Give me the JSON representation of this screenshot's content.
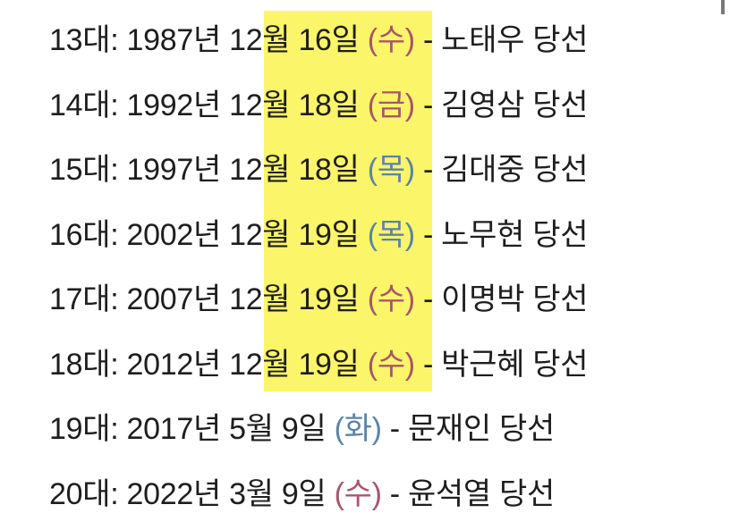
{
  "colors": {
    "highlight": "#fbf56a",
    "weekday_red": "#a8566a",
    "weekday_blue": "#5b84a8",
    "text": "#1e1e1e"
  },
  "rows": [
    {
      "term": "13대:",
      "year": "1987년",
      "date": "12월 16일",
      "weekday": "(수)",
      "weekday_color": "red",
      "sep": "-",
      "result": "노태우 당선",
      "highlighted": true
    },
    {
      "term": "14대:",
      "year": "1992년",
      "date": "12월 18일",
      "weekday": "(금)",
      "weekday_color": "red",
      "sep": "-",
      "result": "김영삼 당선",
      "highlighted": true
    },
    {
      "term": "15대:",
      "year": "1997년",
      "date": "12월 18일",
      "weekday": "(목)",
      "weekday_color": "blue",
      "sep": "-",
      "result": "김대중 당선",
      "highlighted": true
    },
    {
      "term": "16대:",
      "year": "2002년",
      "date": "12월 19일",
      "weekday": "(목)",
      "weekday_color": "blue",
      "sep": "-",
      "result": "노무현 당선",
      "highlighted": true
    },
    {
      "term": "17대:",
      "year": "2007년",
      "date": "12월 19일",
      "weekday": "(수)",
      "weekday_color": "red",
      "sep": "-",
      "result": "이명박 당선",
      "highlighted": true
    },
    {
      "term": "18대:",
      "year": "2012년",
      "date": "12월 19일",
      "weekday": "(수)",
      "weekday_color": "red",
      "sep": "-",
      "result": "박근혜 당선",
      "highlighted": true
    },
    {
      "term": "19대:",
      "year": "2017년",
      "date": "5월 9일",
      "weekday": "(화)",
      "weekday_color": "blue",
      "sep": "-",
      "result": "문재인 당선",
      "highlighted": false
    },
    {
      "term": "20대:",
      "year": "2022년",
      "date": "3월 9일",
      "weekday": "(수)",
      "weekday_color": "red",
      "sep": "-",
      "result": "윤석열 당선",
      "highlighted": false
    }
  ]
}
